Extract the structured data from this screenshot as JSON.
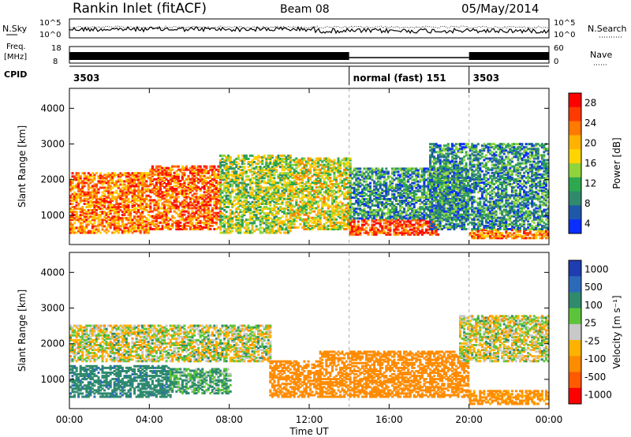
{
  "header": {
    "station": "Rankin Inlet (fitACF)",
    "beam": "Beam 08",
    "date": "05/May/2014"
  },
  "panels": {
    "nsky_label": "N.Sky",
    "nsearch_label": "N.Search",
    "freq_label_1": "Freq.",
    "freq_label_2": "[MHz]",
    "nave_label": "Nave",
    "cpid_label": "CPID",
    "noise_ticks": [
      "10^5",
      "10^0"
    ],
    "freq_ticks": [
      "18",
      "8"
    ],
    "nave_ticks": [
      "60",
      "0"
    ]
  },
  "cpid_segments": [
    {
      "label": "3503",
      "start": "00:00"
    },
    {
      "label": "normal (fast) 151",
      "start": "14:00"
    },
    {
      "label": "3503",
      "start": "20:00"
    }
  ],
  "colorbars": [
    {
      "title": "Power [dB]",
      "ticks": [
        "28",
        "24",
        "20",
        "16",
        "12",
        "8",
        "4"
      ],
      "colors": [
        "#ff0000",
        "#ff3a00",
        "#ff7a00",
        "#ffb300",
        "#ffd400",
        "#8fd43b",
        "#2ea84e",
        "#2f8a6e",
        "#1f58a8",
        "#0a2eff"
      ]
    },
    {
      "title": "Velocity [m s⁻¹]",
      "ticks": [
        "1000",
        "500",
        "100",
        "25",
        "-25",
        "-100",
        "-500",
        "-1000"
      ],
      "colors": [
        "#1f3cb0",
        "#2b6ab8",
        "#2f8a6e",
        "#5cc43a",
        "#c8c8c8",
        "#ffb300",
        "#ff8c00",
        "#ff5a00",
        "#ff0000"
      ]
    }
  ],
  "chart_data": [
    {
      "type": "heatmap",
      "name": "power",
      "xlabel": "Time UT",
      "ylabel": "Slant Range [km]",
      "x_range_hours": [
        0,
        24
      ],
      "ylim_km": [
        180,
        4560
      ],
      "xticks": [
        "00:00",
        "04:00",
        "08:00",
        "12:00",
        "16:00",
        "20:00",
        "00:00"
      ],
      "yticks": [
        1000,
        2000,
        3000,
        4000
      ],
      "colorbar": "Power [dB]",
      "color_range": [
        0,
        30
      ],
      "features": [
        {
          "t0": 0.0,
          "t1": 4.0,
          "r0": 500,
          "r1": 2200,
          "value_db": 22
        },
        {
          "t0": 4.0,
          "t1": 7.5,
          "r0": 600,
          "r1": 2400,
          "value_db": 24
        },
        {
          "t0": 7.5,
          "t1": 11.0,
          "r0": 500,
          "r1": 2700,
          "value_db": 14
        },
        {
          "t0": 11.0,
          "t1": 14.0,
          "r0": 600,
          "r1": 2600,
          "value_db": 16
        },
        {
          "t0": 14.0,
          "t1": 18.5,
          "r0": 450,
          "r1": 900,
          "value_db": 26
        },
        {
          "t0": 14.0,
          "t1": 20.0,
          "r0": 900,
          "r1": 2300,
          "value_db": 8
        },
        {
          "t0": 20.0,
          "t1": 24.0,
          "r0": 350,
          "r1": 600,
          "value_db": 22
        },
        {
          "t0": 18.0,
          "t1": 24.0,
          "r0": 600,
          "r1": 3000,
          "value_db": 8
        }
      ]
    },
    {
      "type": "heatmap",
      "name": "velocity",
      "xlabel": "Time UT",
      "ylabel": "Slant Range [km]",
      "x_range_hours": [
        0,
        24
      ],
      "ylim_km": [
        180,
        4560
      ],
      "xticks": [
        "00:00",
        "04:00",
        "08:00",
        "12:00",
        "16:00",
        "20:00",
        "00:00"
      ],
      "yticks": [
        1000,
        2000,
        3000,
        4000
      ],
      "colorbar": "Velocity [m s⁻¹]",
      "color_range": [
        -1000,
        1000
      ],
      "features": [
        {
          "t0": 0.0,
          "t1": 10.0,
          "r0": 1500,
          "r1": 2500,
          "velocity": 0
        },
        {
          "t0": 0.0,
          "t1": 5.0,
          "r0": 500,
          "r1": 1400,
          "velocity": 400
        },
        {
          "t0": 5.0,
          "t1": 8.0,
          "r0": 600,
          "r1": 1300,
          "velocity": 120
        },
        {
          "t0": 10.0,
          "t1": 12.5,
          "r0": 500,
          "r1": 1500,
          "velocity": -300
        },
        {
          "t0": 12.5,
          "t1": 20.0,
          "r0": 500,
          "r1": 1800,
          "velocity": -250
        },
        {
          "t0": 19.5,
          "t1": 24.0,
          "r0": 1500,
          "r1": 2800,
          "velocity": 0
        },
        {
          "t0": 20.0,
          "t1": 24.0,
          "r0": 300,
          "r1": 700,
          "velocity": -200
        }
      ]
    }
  ]
}
